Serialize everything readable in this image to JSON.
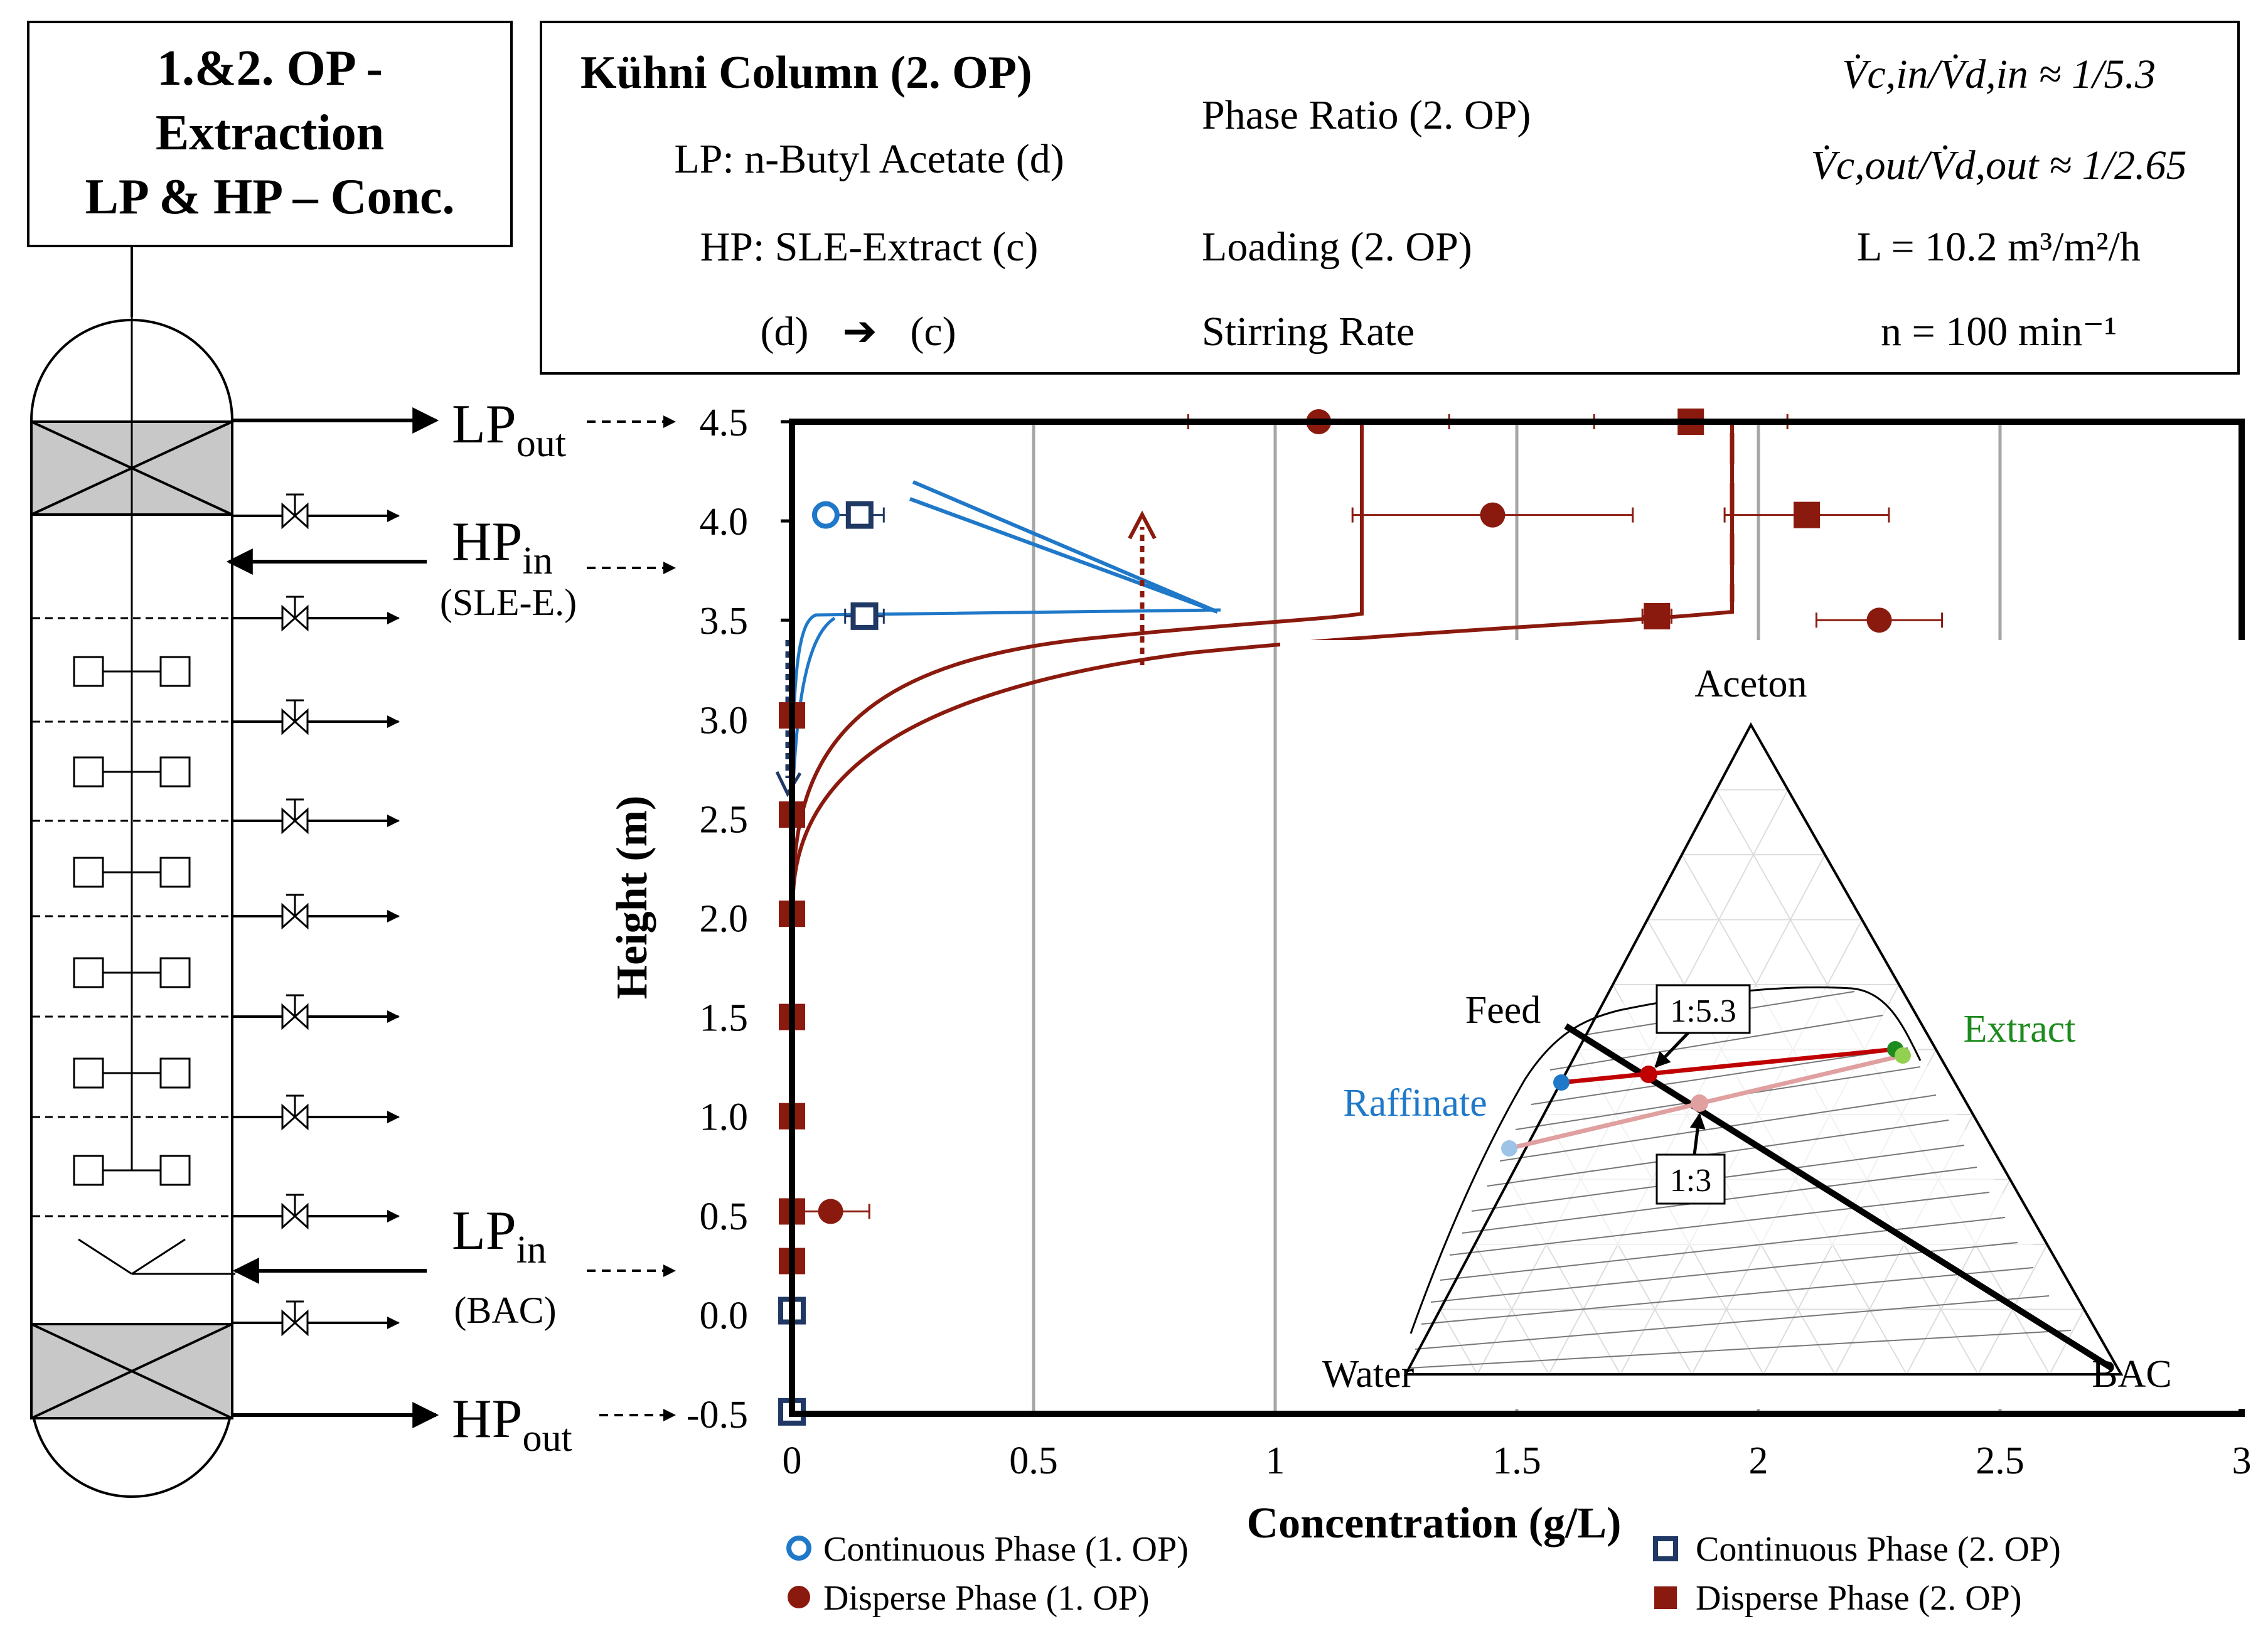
{
  "column_label": {
    "line1": "1.&2. OP -",
    "line2": "Extraction",
    "line3": "LP & HP – Conc."
  },
  "streams": {
    "lp_out": {
      "main": "LP",
      "sub": "out"
    },
    "hp_in": {
      "main": "HP",
      "sub": "in",
      "note": "(SLE-E.)"
    },
    "lp_in": {
      "main": "LP",
      "sub": "in",
      "note": "(BAC)"
    },
    "hp_out": {
      "main": "HP",
      "sub": "out"
    }
  },
  "info_box": {
    "title": "Kühni Column (2. OP)",
    "lp": "LP: n-Butyl Acetate (d)",
    "hp": "HP: SLE-Extract (c)",
    "flow_from": "(d)",
    "flow_arrow": "➔",
    "flow_to": "(c)",
    "phase_ratio_label": "Phase Ratio (2. OP)",
    "loading_label": "Loading (2. OP)",
    "stirring_label": "Stirring Rate",
    "ratio_in": "V̇c,in/V̇d,in ≈ 1/5.3",
    "ratio_out": "V̇c,out/V̇d,out ≈ 1/2.65",
    "loading_value": "L = 10.2 m³/m²/h",
    "stirring_value": "n = 100 min⁻¹"
  },
  "chart_data": {
    "type": "scatter",
    "title": "",
    "xlabel": "Concentration (g/L)",
    "ylabel": "Height (m)",
    "xlim": [
      0,
      3
    ],
    "ylim": [
      -0.5,
      4.5
    ],
    "x_ticks": [
      "0",
      "0.5",
      "1",
      "1.5",
      "2",
      "2.5",
      "3"
    ],
    "y_ticks": [
      "-0.5",
      "0.0",
      "0.5",
      "1.0",
      "1.5",
      "2.0",
      "2.5",
      "3.0",
      "3.5",
      "4.0",
      "4.5"
    ],
    "grid": "vertical",
    "legend": [
      {
        "label": "Continuous Phase (1. OP)",
        "marker": "open-circle",
        "color": "#1F78C8"
      },
      {
        "label": "Disperse Phase (1. OP)",
        "marker": "filled-circle",
        "color": "#8B1A0E"
      },
      {
        "label": "Continuous Phase (2. OP)",
        "marker": "open-square",
        "color": "#1F3864"
      },
      {
        "label": "Disperse Phase (2. OP)",
        "marker": "filled-square",
        "color": "#8B1A0E"
      }
    ],
    "series": [
      {
        "name": "Continuous Phase (1. OP)",
        "points": [
          [
            0.07,
            4.03
          ],
          [
            0.0,
            0.02
          ]
        ]
      },
      {
        "name": "Disperse Phase (1. OP)",
        "points": [
          [
            1.09,
            4.5
          ],
          [
            1.45,
            4.03
          ],
          [
            2.25,
            3.5
          ],
          [
            0.08,
            0.52
          ]
        ],
        "xerr": [
          0.27,
          0.29,
          0.13,
          0.08
        ]
      },
      {
        "name": "Continuous Phase (2. OP)",
        "points": [
          [
            0.14,
            4.03
          ],
          [
            0.15,
            3.52
          ],
          [
            0.0,
            0.02
          ],
          [
            0.0,
            -0.49
          ]
        ],
        "xerr": [
          0.05,
          0.04,
          0,
          0
        ]
      },
      {
        "name": "Disperse Phase (2. OP)",
        "points": [
          [
            1.86,
            4.5
          ],
          [
            2.1,
            4.03
          ],
          [
            1.79,
            3.52
          ],
          [
            0.0,
            3.02
          ],
          [
            0.0,
            2.52
          ],
          [
            0.0,
            2.02
          ],
          [
            0.0,
            1.5
          ],
          [
            0.0,
            1.0
          ],
          [
            0.0,
            0.52
          ],
          [
            0.0,
            0.27
          ]
        ],
        "xerr": [
          0.2,
          0.17,
          0.03,
          0,
          0,
          0,
          0,
          0,
          0,
          0
        ]
      }
    ],
    "colors": {
      "continuous_1": "#1F78C8",
      "continuous_2": "#1F3864",
      "disperse": "#8B1A0E",
      "grid": "#A6A6A6"
    }
  },
  "ternary": {
    "apex_top": "Aceton",
    "apex_left": "Water",
    "apex_right": "BAC",
    "feed_label": "Feed",
    "raffinate_label": "Raffinate",
    "extract_label": "Extract",
    "ratio_1": "1:5.3",
    "ratio_2": "1:3",
    "colors": {
      "raffinate": "#1F78C8",
      "extract": "#1E8B1E",
      "tie_dark": "#C00000",
      "tie_light": "#E0A0A0"
    }
  }
}
